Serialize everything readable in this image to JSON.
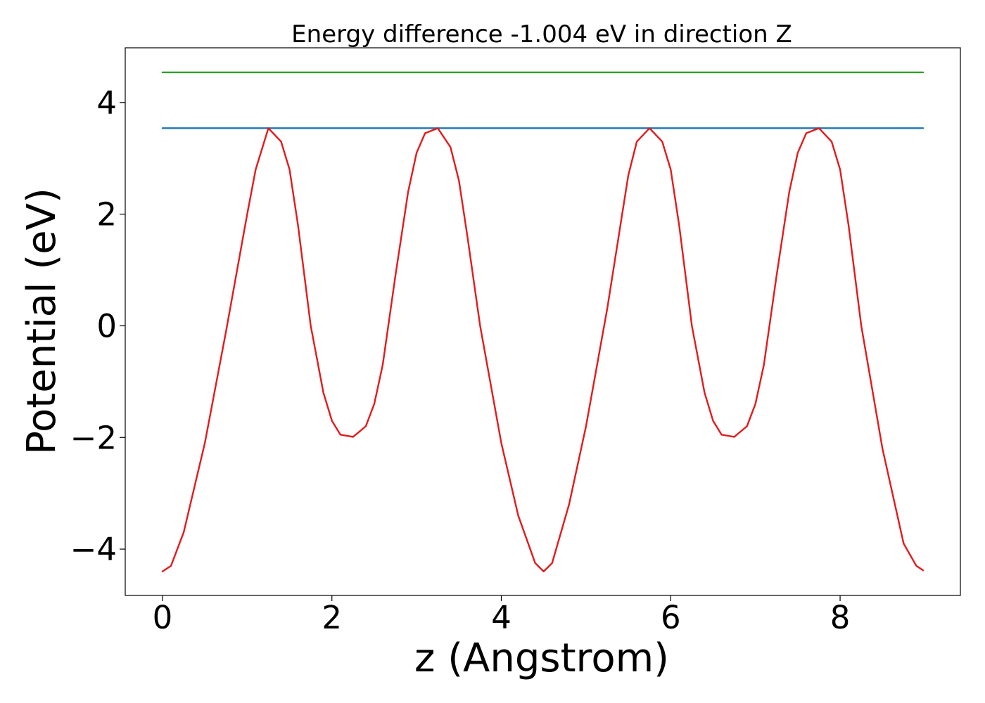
{
  "chart_data": {
    "type": "line",
    "title": "Energy difference -1.004 eV in direction Z",
    "xlabel": "z (Angstrom)",
    "ylabel": "Potential (eV)",
    "xlim": [
      -0.44,
      9.42
    ],
    "ylim": [
      -4.83,
      4.98
    ],
    "xticks": [
      0,
      2,
      4,
      6,
      8
    ],
    "xtick_labels": [
      "0",
      "2",
      "4",
      "6",
      "8"
    ],
    "yticks": [
      -4,
      -2,
      0,
      2,
      4
    ],
    "ytick_labels": [
      "−4",
      "−2",
      "0",
      "2",
      "4"
    ],
    "grid": false,
    "legend": "none",
    "series": [
      {
        "color": "#2ca02c",
        "x": [
          0,
          8.98
        ],
        "y": [
          4.54,
          4.54
        ]
      },
      {
        "color": "#1f77b4",
        "x": [
          0,
          8.98
        ],
        "y": [
          3.54,
          3.54
        ]
      },
      {
        "color": "#e41a1c",
        "x": [
          0.0,
          0.1,
          0.25,
          0.5,
          0.75,
          1.0,
          1.1,
          1.25,
          1.4,
          1.5,
          1.6,
          1.75,
          1.9,
          2.0,
          2.1,
          2.25,
          2.4,
          2.5,
          2.6,
          2.75,
          2.9,
          3.0,
          3.1,
          3.25,
          3.4,
          3.5,
          3.6,
          3.75,
          4.0,
          4.2,
          4.4,
          4.5,
          4.6,
          4.8,
          5.0,
          5.25,
          5.5,
          5.6,
          5.75,
          5.9,
          6.0,
          6.1,
          6.25,
          6.4,
          6.5,
          6.6,
          6.75,
          6.9,
          7.0,
          7.1,
          7.25,
          7.4,
          7.5,
          7.6,
          7.75,
          7.9,
          8.0,
          8.1,
          8.25,
          8.5,
          8.75,
          8.9,
          8.98
        ],
        "y": [
          -4.4,
          -4.3,
          -3.7,
          -2.1,
          -0.1,
          2.0,
          2.8,
          3.54,
          3.3,
          2.8,
          1.8,
          0.0,
          -1.2,
          -1.7,
          -1.95,
          -1.99,
          -1.8,
          -1.4,
          -0.7,
          0.9,
          2.4,
          3.1,
          3.45,
          3.54,
          3.2,
          2.6,
          1.6,
          0.0,
          -2.1,
          -3.4,
          -4.25,
          -4.4,
          -4.25,
          -3.2,
          -1.8,
          0.3,
          2.7,
          3.3,
          3.54,
          3.3,
          2.8,
          1.8,
          0.0,
          -1.2,
          -1.7,
          -1.95,
          -1.99,
          -1.8,
          -1.4,
          -0.7,
          0.9,
          2.4,
          3.1,
          3.45,
          3.54,
          3.3,
          2.8,
          1.8,
          0.0,
          -2.2,
          -3.9,
          -4.3,
          -4.38
        ]
      }
    ]
  }
}
